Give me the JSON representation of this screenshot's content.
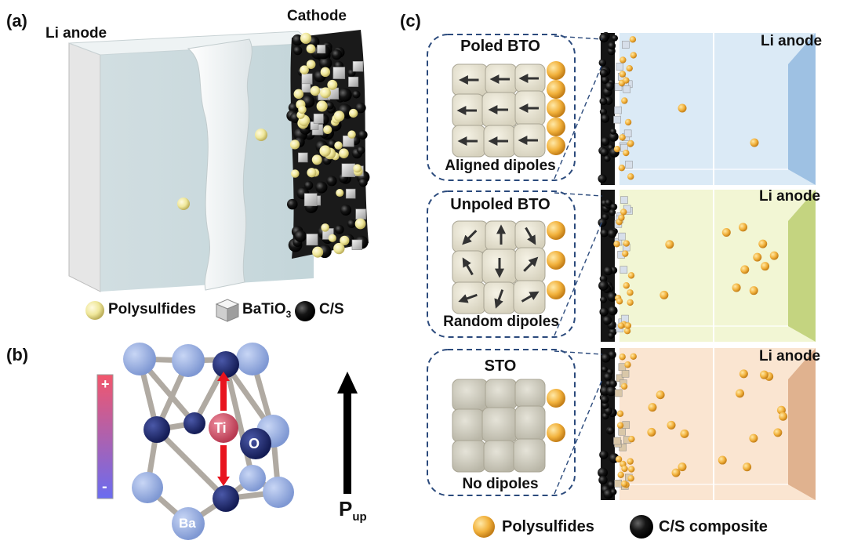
{
  "panel_a": {
    "letter": "(a)",
    "anode_label": "Li anode",
    "cathode_label": "Cathode"
  },
  "legend_a": {
    "polysulfides": "Polysulfides",
    "batio3_main": "BaTiO",
    "batio3_sub": "3",
    "cs": "C/S"
  },
  "panel_b": {
    "letter": "(b)",
    "plus": "+",
    "minus": "-",
    "ti": "Ti",
    "o": "O",
    "ba": "Ba",
    "p_main": "P",
    "p_sub": "up"
  },
  "panel_c": {
    "letter": "(c)",
    "rows": [
      {
        "inset_title": "Poled BTO",
        "inset_caption": "Aligned dipoles",
        "anode_label": "Li anode",
        "tint": "#cfe3f3",
        "edge": "#8fb7de"
      },
      {
        "inset_title": "Unpoled BTO",
        "inset_caption": "Random dipoles",
        "anode_label": "Li anode",
        "tint": "#eef3c6",
        "edge": "#b8cc6a"
      },
      {
        "inset_title": "STO",
        "inset_caption": "No dipoles",
        "anode_label": "Li anode",
        "tint": "#f8dcc2",
        "edge": "#d9a57e"
      }
    ]
  },
  "legend_c": {
    "polysulfides": "Polysulfides",
    "cs": "C/S composite"
  },
  "colors": {
    "polysulfide_a": "#efe79a",
    "polysulfide_c": "#f2b23d",
    "carbon": "#111111",
    "ba_atom": "#8fa8de",
    "o_atom": "#1f2a6b",
    "ti_atom": "#d0556a",
    "arrow_red": "#e8141e"
  }
}
